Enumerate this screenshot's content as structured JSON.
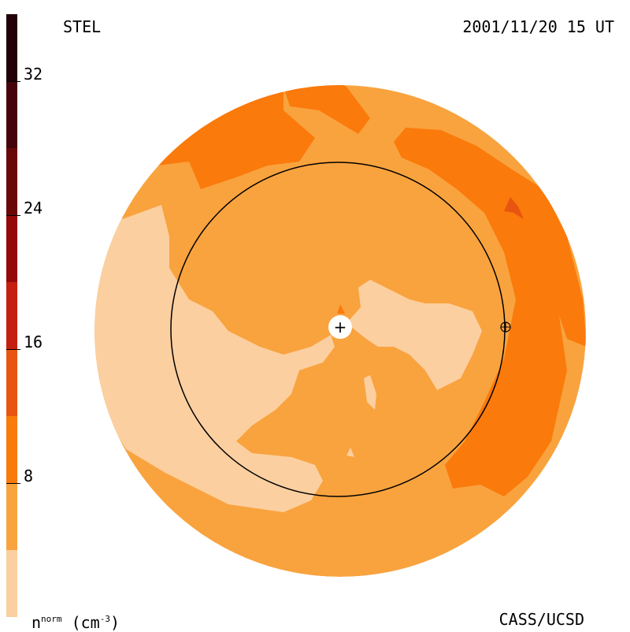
{
  "header": {
    "source": "STEL",
    "datetime": "2001/11/20 15 UT"
  },
  "footer": {
    "credit": "CASS/UCSD"
  },
  "colorbar": {
    "units_base": "n",
    "units_sup": "norm",
    "units_rest": " (cm",
    "units_exp": "-3",
    "units_close": ")",
    "min": 0,
    "max": 36,
    "bands": [
      {
        "from": 0,
        "to": 4,
        "color": "#fbcfa0"
      },
      {
        "from": 4,
        "to": 8,
        "color": "#f9a33e"
      },
      {
        "from": 8,
        "to": 12,
        "color": "#fa7a0c"
      },
      {
        "from": 12,
        "to": 16,
        "color": "#e85510"
      },
      {
        "from": 16,
        "to": 20,
        "color": "#c4200f"
      },
      {
        "from": 20,
        "to": 24,
        "color": "#950a08"
      },
      {
        "from": 24,
        "to": 28,
        "color": "#6a0808"
      },
      {
        "from": 28,
        "to": 32,
        "color": "#45040a"
      },
      {
        "from": 32,
        "to": 36,
        "color": "#220007"
      }
    ],
    "ticks": [
      {
        "value": 8,
        "label": "8"
      },
      {
        "value": 16,
        "label": "16"
      },
      {
        "value": 24,
        "label": "24"
      },
      {
        "value": 32,
        "label": "32"
      }
    ]
  },
  "colors": {
    "background": "#f9a33e",
    "low": "#fbcfa0",
    "high": "#fa7a0c",
    "peak": "#e85510",
    "orbit": "#000000"
  },
  "markers": {
    "sun_symbol": "+",
    "earth_symbol": "⊕"
  }
}
